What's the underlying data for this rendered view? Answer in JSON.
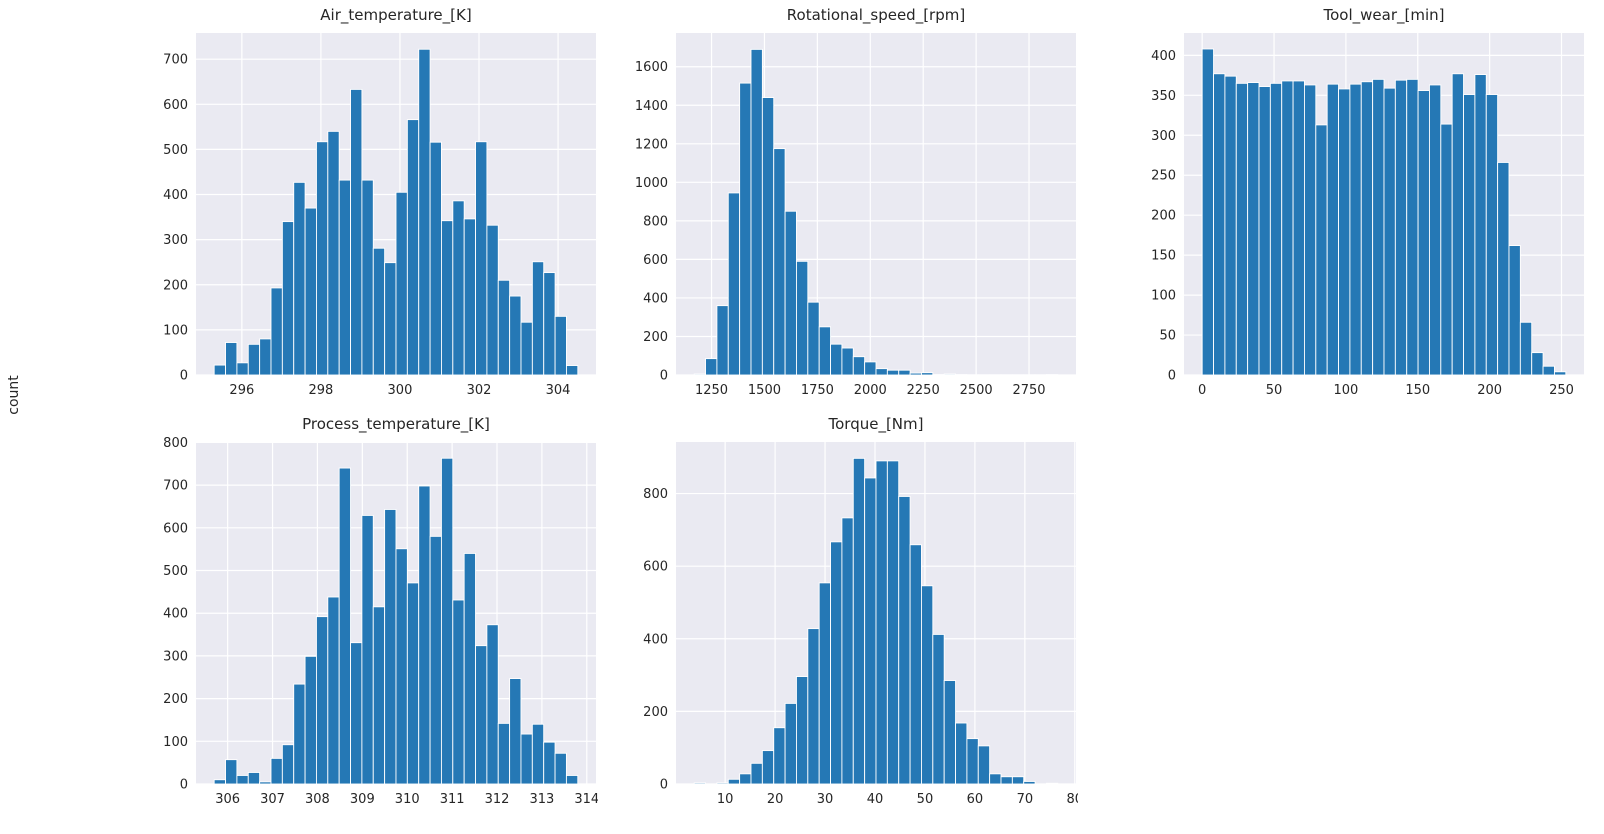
{
  "figure": {
    "ylabel": "count"
  },
  "style": {
    "figure_bg": "#ffffff",
    "panel_bg": "#eaeaf2",
    "grid_color": "#ffffff",
    "bar_color": "#2578b5",
    "bar_edge_color": "#ffffff",
    "text_color": "#262626"
  },
  "chart_data": [
    {
      "type": "bar",
      "subtype": "histogram",
      "title": "Air_temperature_[K]",
      "xlabel": "",
      "ylabel": "count",
      "grid": true,
      "bin_start": 295.3,
      "bin_width": 0.2875,
      "values": [
        22,
        72,
        27,
        68,
        80,
        193,
        340,
        427,
        370,
        517,
        540,
        432,
        633,
        432,
        281,
        249,
        405,
        566,
        722,
        516,
        342,
        386,
        346,
        517,
        332,
        210,
        175,
        117,
        251,
        227,
        130,
        21
      ],
      "xticks": [
        296,
        298,
        300,
        302,
        304
      ],
      "yticks": [
        0,
        100,
        200,
        300,
        400,
        500,
        600,
        700
      ],
      "xlim": [
        294.84,
        304.96
      ],
      "ylim": [
        0,
        758
      ]
    },
    {
      "type": "bar",
      "subtype": "histogram",
      "title": "Rotational_speed_[rpm]",
      "xlabel": "",
      "ylabel": "count",
      "grid": true,
      "bin_start": 1168,
      "bin_width": 53.69,
      "values": [
        5,
        85,
        360,
        945,
        1515,
        1690,
        1440,
        1175,
        850,
        590,
        378,
        250,
        160,
        140,
        95,
        68,
        33,
        25,
        25,
        10,
        12,
        2,
        5,
        2,
        1,
        1,
        1,
        1,
        1,
        1,
        1,
        2
      ],
      "xticks": [
        1250,
        1500,
        1750,
        2000,
        2250,
        2500,
        2750
      ],
      "yticks": [
        0,
        200,
        400,
        600,
        800,
        1000,
        1200,
        1400,
        1600
      ],
      "xlim": [
        1082.1,
        2971.9
      ],
      "ylim": [
        0,
        1775
      ]
    },
    {
      "type": "bar",
      "subtype": "histogram",
      "title": "Tool_wear_[min]",
      "xlabel": "",
      "ylabel": "count",
      "grid": true,
      "bin_start": 0,
      "bin_width": 7.906,
      "values": [
        408,
        377,
        374,
        365,
        366,
        361,
        365,
        368,
        368,
        363,
        313,
        364,
        358,
        364,
        367,
        370,
        359,
        369,
        370,
        356,
        363,
        314,
        377,
        351,
        376,
        351,
        266,
        162,
        66,
        28,
        11,
        4
      ],
      "xticks": [
        0,
        50,
        100,
        150,
        200,
        250
      ],
      "yticks": [
        0,
        50,
        100,
        150,
        200,
        250,
        300,
        350,
        400
      ],
      "xlim": [
        -12.65,
        265.65
      ],
      "ylim": [
        0,
        428
      ]
    },
    {
      "type": "bar",
      "subtype": "histogram",
      "title": "Process_temperature_[K]",
      "xlabel": "",
      "ylabel": "count",
      "grid": true,
      "bin_start": 305.7,
      "bin_width": 0.2531,
      "values": [
        10,
        57,
        20,
        27,
        5,
        60,
        92,
        234,
        299,
        392,
        438,
        740,
        331,
        629,
        415,
        643,
        551,
        471,
        698,
        580,
        763,
        431,
        540,
        324,
        373,
        142,
        247,
        117,
        140,
        98,
        72,
        20
      ],
      "xticks": [
        306,
        307,
        308,
        309,
        310,
        311,
        312,
        313,
        314
      ],
      "yticks": [
        0,
        100,
        200,
        300,
        400,
        500,
        600,
        700,
        800
      ],
      "xlim": [
        305.295,
        314.205
      ],
      "ylim": [
        0,
        801
      ]
    },
    {
      "type": "bar",
      "subtype": "histogram",
      "title": "Torque_[Nm]",
      "xlabel": "",
      "ylabel": "count",
      "grid": true,
      "bin_start": 3.8,
      "bin_width": 2.275,
      "values": [
        3,
        0,
        3,
        13,
        28,
        57,
        92,
        155,
        222,
        296,
        428,
        554,
        667,
        733,
        897,
        843,
        890,
        890,
        792,
        659,
        546,
        412,
        285,
        168,
        125,
        105,
        28,
        20,
        20,
        7,
        0,
        2
      ],
      "xticks": [
        10,
        20,
        30,
        40,
        50,
        60,
        70,
        80
      ],
      "yticks": [
        0,
        200,
        400,
        600,
        800
      ],
      "xlim": [
        0.16,
        80.24
      ],
      "ylim": [
        0,
        942
      ]
    }
  ]
}
